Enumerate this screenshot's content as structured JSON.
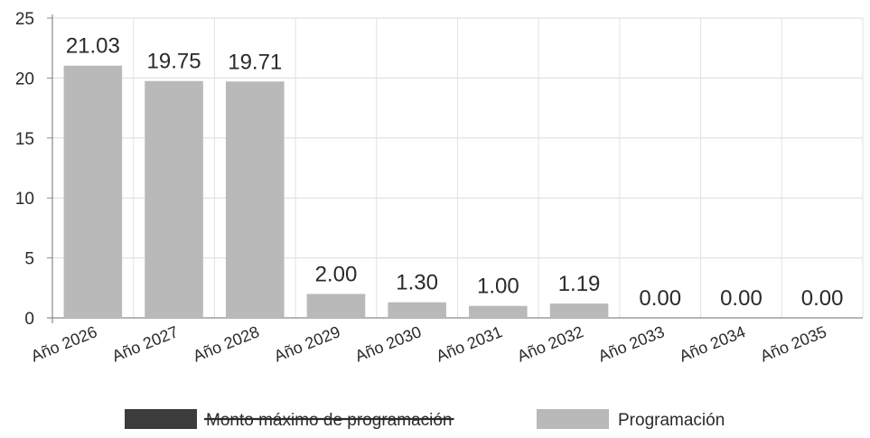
{
  "chart_data": {
    "type": "bar",
    "title": "",
    "xlabel": "",
    "ylabel": "",
    "ylim": [
      0,
      25
    ],
    "yticks": [
      0,
      5,
      10,
      15,
      20,
      25
    ],
    "grid": true,
    "legend_position": "bottom",
    "categories": [
      "Año 2026",
      "Año 2027",
      "Año 2028",
      "Año 2029",
      "Año 2030",
      "Año 2031",
      "Año 2032",
      "Año 2033",
      "Año 2034",
      "Año 2035"
    ],
    "series": [
      {
        "name": "Monto máximo de programación",
        "color": "#3c3c3c",
        "values": [
          0,
          0,
          0,
          0,
          0,
          0,
          0,
          0,
          0,
          0
        ],
        "legend_struck_through": true
      },
      {
        "name": "Programación",
        "color": "#b9b9b9",
        "values": [
          21.03,
          19.75,
          19.71,
          2.0,
          1.3,
          1.0,
          1.19,
          0.0,
          0.0,
          0.0
        ],
        "labels": [
          "21.03",
          "19.75",
          "19.71",
          "2.00",
          "1.30",
          "1.00",
          "1.19",
          "0.00",
          "0.00",
          "0.00"
        ]
      }
    ]
  }
}
